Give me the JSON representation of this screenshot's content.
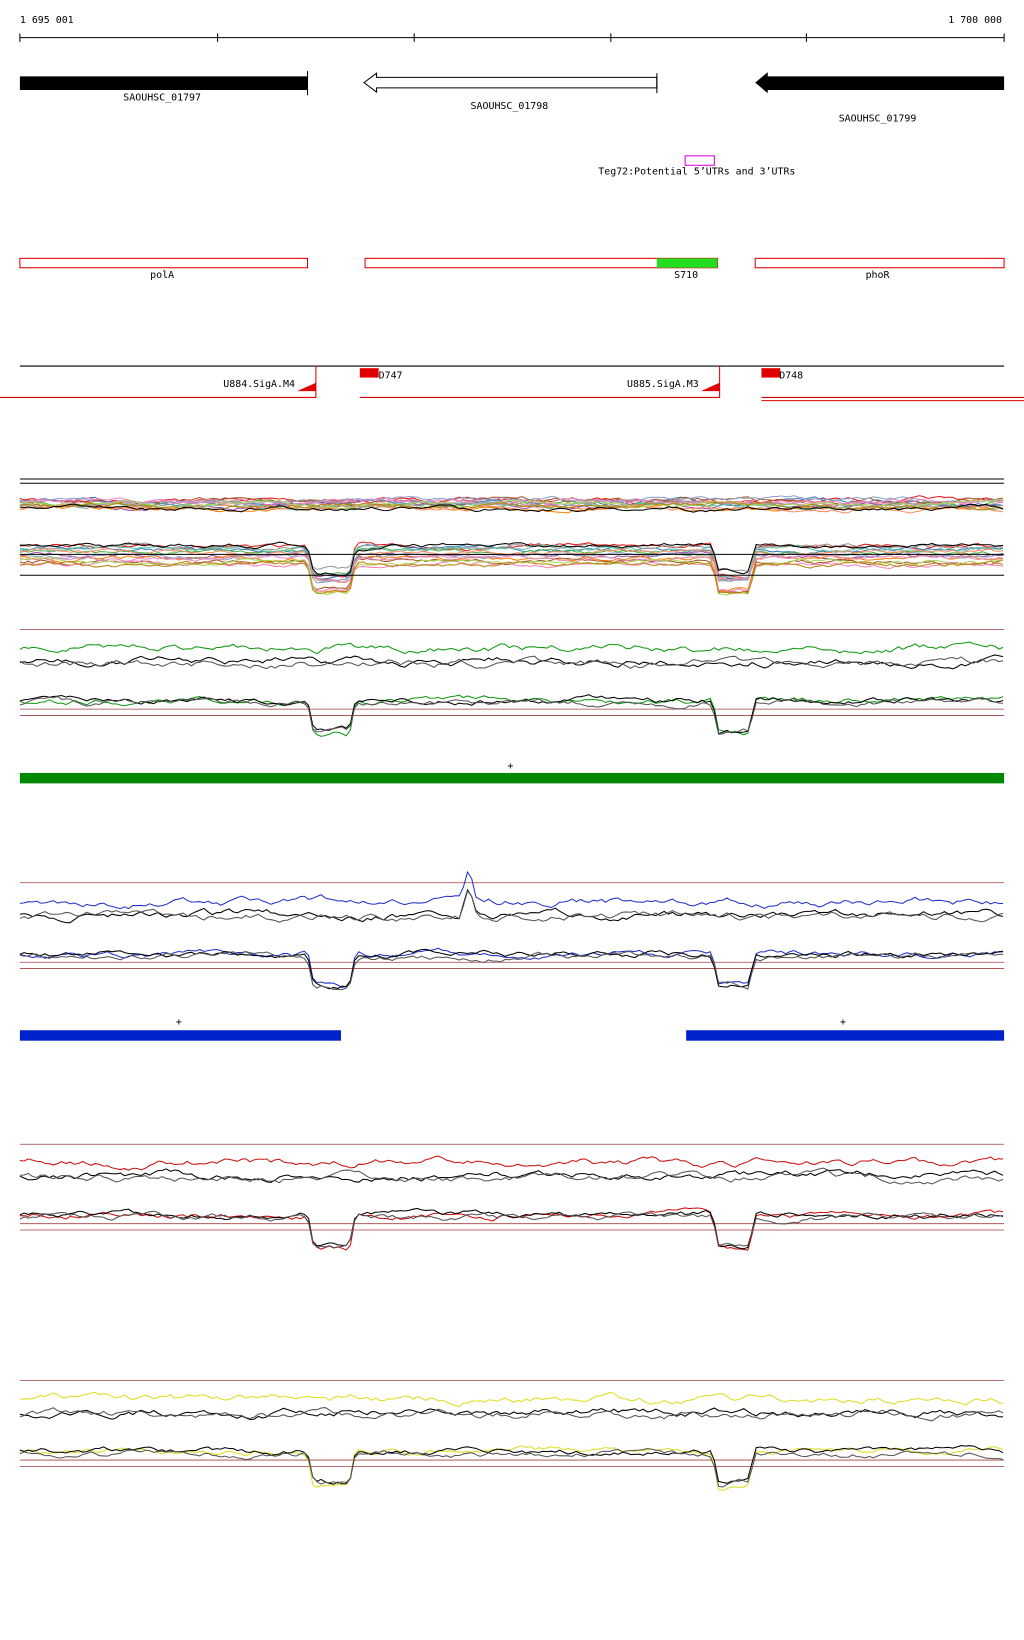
{
  "ruler": {
    "start": "1 695 001",
    "end": "1 700 000"
  },
  "genes": [
    "SAOUHSC_01797",
    "SAOUHSC_01798",
    "SAOUHSC_01799"
  ],
  "annotation": "Teg72:Potential 5’UTRs and 3’UTRs",
  "operons": [
    "polA",
    "S710",
    "phoR"
  ],
  "promoters": [
    "U884.SigA.M4",
    "D747",
    "U885.SigA.M3",
    "D748"
  ],
  "strand_marks": [
    "+",
    "+",
    "+"
  ]
}
